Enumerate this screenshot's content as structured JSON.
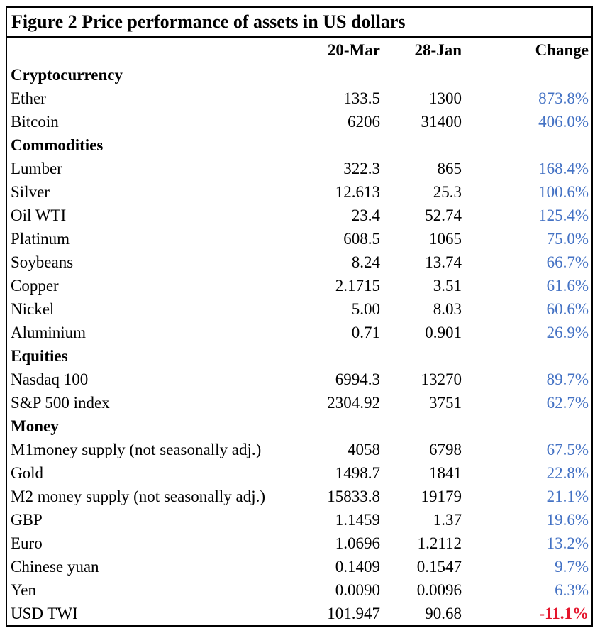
{
  "title": "Figure 2 Price performance of assets in US dollars",
  "columns": [
    "20-Mar",
    "28-Jan",
    "Change"
  ],
  "colors": {
    "positive_change": "#4472c4",
    "negative_change": "#e4152c",
    "border": "#000000"
  },
  "sections": [
    {
      "label": "Cryptocurrency",
      "rows": [
        {
          "name": "Ether",
          "mar": "133.5",
          "jan": "1300",
          "change": "873.8%",
          "negative": false
        },
        {
          "name": "Bitcoin",
          "mar": "6206",
          "jan": "31400",
          "change": "406.0%",
          "negative": false
        }
      ]
    },
    {
      "label": "Commodities",
      "rows": [
        {
          "name": "Lumber",
          "mar": "322.3",
          "jan": "865",
          "change": "168.4%",
          "negative": false
        },
        {
          "name": "Silver",
          "mar": "12.613",
          "jan": "25.3",
          "change": "100.6%",
          "negative": false
        },
        {
          "name": "Oil WTI",
          "mar": "23.4",
          "jan": "52.74",
          "change": "125.4%",
          "negative": false
        },
        {
          "name": "Platinum",
          "mar": "608.5",
          "jan": "1065",
          "change": "75.0%",
          "negative": false
        },
        {
          "name": "Soybeans",
          "mar": "8.24",
          "jan": "13.74",
          "change": "66.7%",
          "negative": false
        },
        {
          "name": "Copper",
          "mar": "2.1715",
          "jan": "3.51",
          "change": "61.6%",
          "negative": false
        },
        {
          "name": "Nickel",
          "mar": "5.00",
          "jan": "8.03",
          "change": "60.6%",
          "negative": false
        },
        {
          "name": "Aluminium",
          "mar": "0.71",
          "jan": "0.901",
          "change": "26.9%",
          "negative": false
        }
      ]
    },
    {
      "label": "Equities",
      "rows": [
        {
          "name": "Nasdaq 100",
          "mar": "6994.3",
          "jan": "13270",
          "change": "89.7%",
          "negative": false
        },
        {
          "name": "S&P 500 index",
          "mar": "2304.92",
          "jan": "3751",
          "change": "62.7%",
          "negative": false
        }
      ]
    },
    {
      "label": "Money",
      "rows": [
        {
          "name": "M1money supply (not seasonally adj.)",
          "mar": "4058",
          "jan": "6798",
          "change": "67.5%",
          "negative": false
        },
        {
          "name": "Gold",
          "mar": "1498.7",
          "jan": "1841",
          "change": "22.8%",
          "negative": false
        },
        {
          "name": "M2 money supply (not seasonally adj.)",
          "mar": "15833.8",
          "jan": "19179",
          "change": "21.1%",
          "negative": false
        },
        {
          "name": "GBP",
          "mar": "1.1459",
          "jan": "1.37",
          "change": "19.6%",
          "negative": false
        },
        {
          "name": "Euro",
          "mar": "1.0696",
          "jan": "1.2112",
          "change": "13.2%",
          "negative": false
        },
        {
          "name": "Chinese yuan",
          "mar": "0.1409",
          "jan": "0.1547",
          "change": "9.7%",
          "negative": false
        },
        {
          "name": "Yen",
          "mar": "0.0090",
          "jan": "0.0096",
          "change": "6.3%",
          "negative": false
        },
        {
          "name": "USD TWI",
          "mar": "101.947",
          "jan": "90.68",
          "change": "-11.1%",
          "negative": true
        }
      ]
    }
  ]
}
